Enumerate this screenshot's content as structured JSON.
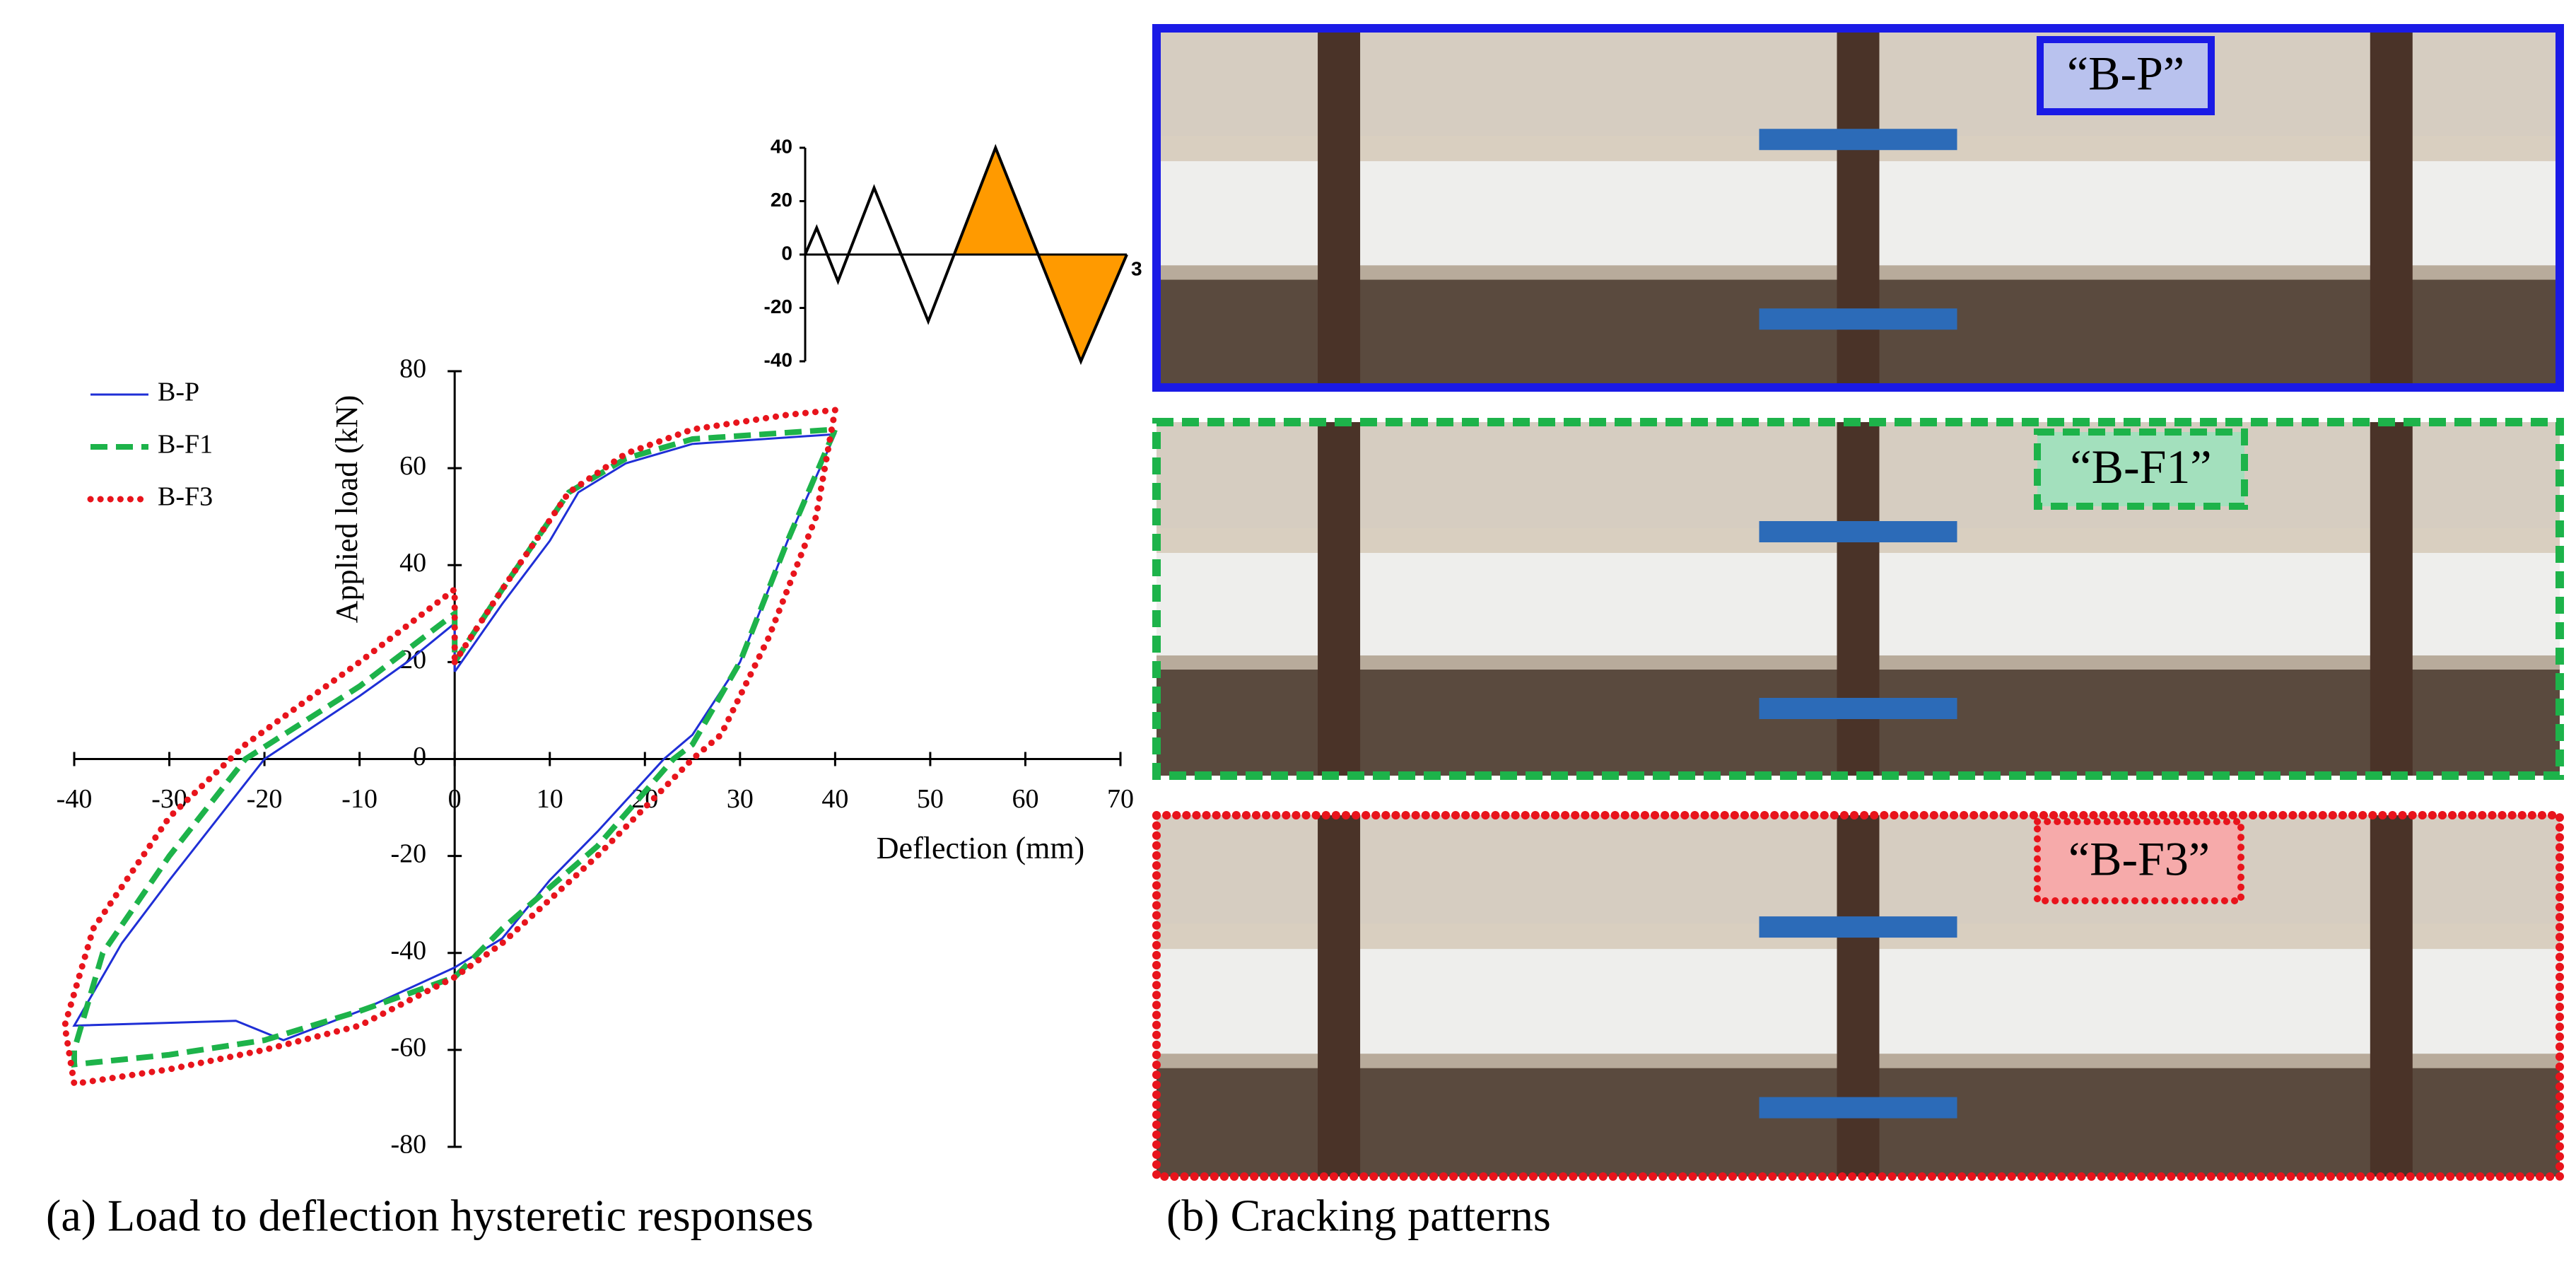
{
  "chart_data": [
    {
      "type": "line",
      "xlabel": "Deflection (mm)",
      "ylabel": "Applied load (kN)",
      "xlim": [
        -40,
        70
      ],
      "ylim": [
        -80,
        80
      ],
      "xticks": [
        -40,
        -30,
        -20,
        -10,
        0,
        10,
        20,
        30,
        40,
        50,
        60,
        70
      ],
      "yticks": [
        -80,
        -60,
        -40,
        -20,
        0,
        20,
        40,
        60,
        80
      ],
      "legend": "top-left",
      "series": [
        {
          "name": "B-P",
          "color": "#1f2fd6",
          "style": "solid",
          "x": [
            0,
            5,
            10,
            13,
            18,
            25,
            40,
            35,
            30,
            25,
            22,
            15,
            10,
            5,
            0,
            -10,
            -18,
            -23,
            -40,
            -35,
            -30,
            -20,
            -10,
            -5,
            0,
            0
          ],
          "values": [
            18,
            32,
            45,
            55,
            61,
            65,
            67,
            45,
            20,
            5,
            0,
            -15,
            -25,
            -37,
            -43,
            -52,
            -58,
            -54,
            -55,
            -38,
            -25,
            0,
            13,
            20,
            28,
            18
          ]
        },
        {
          "name": "B-F1",
          "color": "#1db34a",
          "style": "dashed",
          "x": [
            0,
            5,
            12,
            18,
            25,
            40,
            35,
            30,
            25,
            23,
            15,
            5,
            0,
            -10,
            -20,
            -30,
            -40,
            -40,
            -37,
            -30,
            -22,
            -10,
            0,
            0
          ],
          "values": [
            20,
            35,
            55,
            62,
            66,
            68,
            45,
            20,
            3,
            0,
            -18,
            -35,
            -45,
            -52,
            -58,
            -61,
            -63,
            -60,
            -40,
            -20,
            0,
            15,
            30,
            20
          ]
        },
        {
          "name": "B-F3",
          "color": "#e8141c",
          "style": "dotted",
          "x": [
            0,
            5,
            12,
            18,
            25,
            35,
            40,
            38,
            33,
            28,
            25,
            15,
            5,
            0,
            -10,
            -20,
            -30,
            -40,
            -41,
            -38,
            -30,
            -22,
            -10,
            0,
            0
          ],
          "values": [
            20,
            35,
            55,
            63,
            68,
            71,
            72,
            50,
            25,
            5,
            0,
            -20,
            -38,
            -45,
            -55,
            -60,
            -64,
            -67,
            -55,
            -35,
            -12,
            3,
            20,
            35,
            20
          ]
        }
      ]
    },
    {
      "type": "protocol",
      "xlim": [
        0,
        9.8
      ],
      "ylim": [
        -40,
        40
      ],
      "yticks": [
        40,
        20,
        0,
        -20,
        -40
      ],
      "x": [
        0,
        0.35,
        1,
        2.1,
        3.75,
        5.8,
        7.1,
        8.4,
        9.8
      ],
      "values": [
        0,
        10,
        -10,
        25,
        -25,
        40,
        0,
        -40,
        0
      ],
      "color": "#000000",
      "fill_color": "#ff9a00",
      "annotation": "3"
    }
  ],
  "captions": [
    "(a) Load to deflection hysteretic responses",
    "(b) Cracking patterns"
  ],
  "panels": [
    {
      "label": "“B-P”",
      "border_color": "#1a1ae6",
      "label_fill": "#b9c2ee",
      "style": "solid"
    },
    {
      "label": "“B-F1”",
      "border_color": "#1db34a",
      "label_fill": "#a3e0bd",
      "style": "dashed"
    },
    {
      "label": "“B-F3”",
      "border_color": "#e8141c",
      "label_fill": "#f6aaaa",
      "style": "dotted"
    }
  ]
}
